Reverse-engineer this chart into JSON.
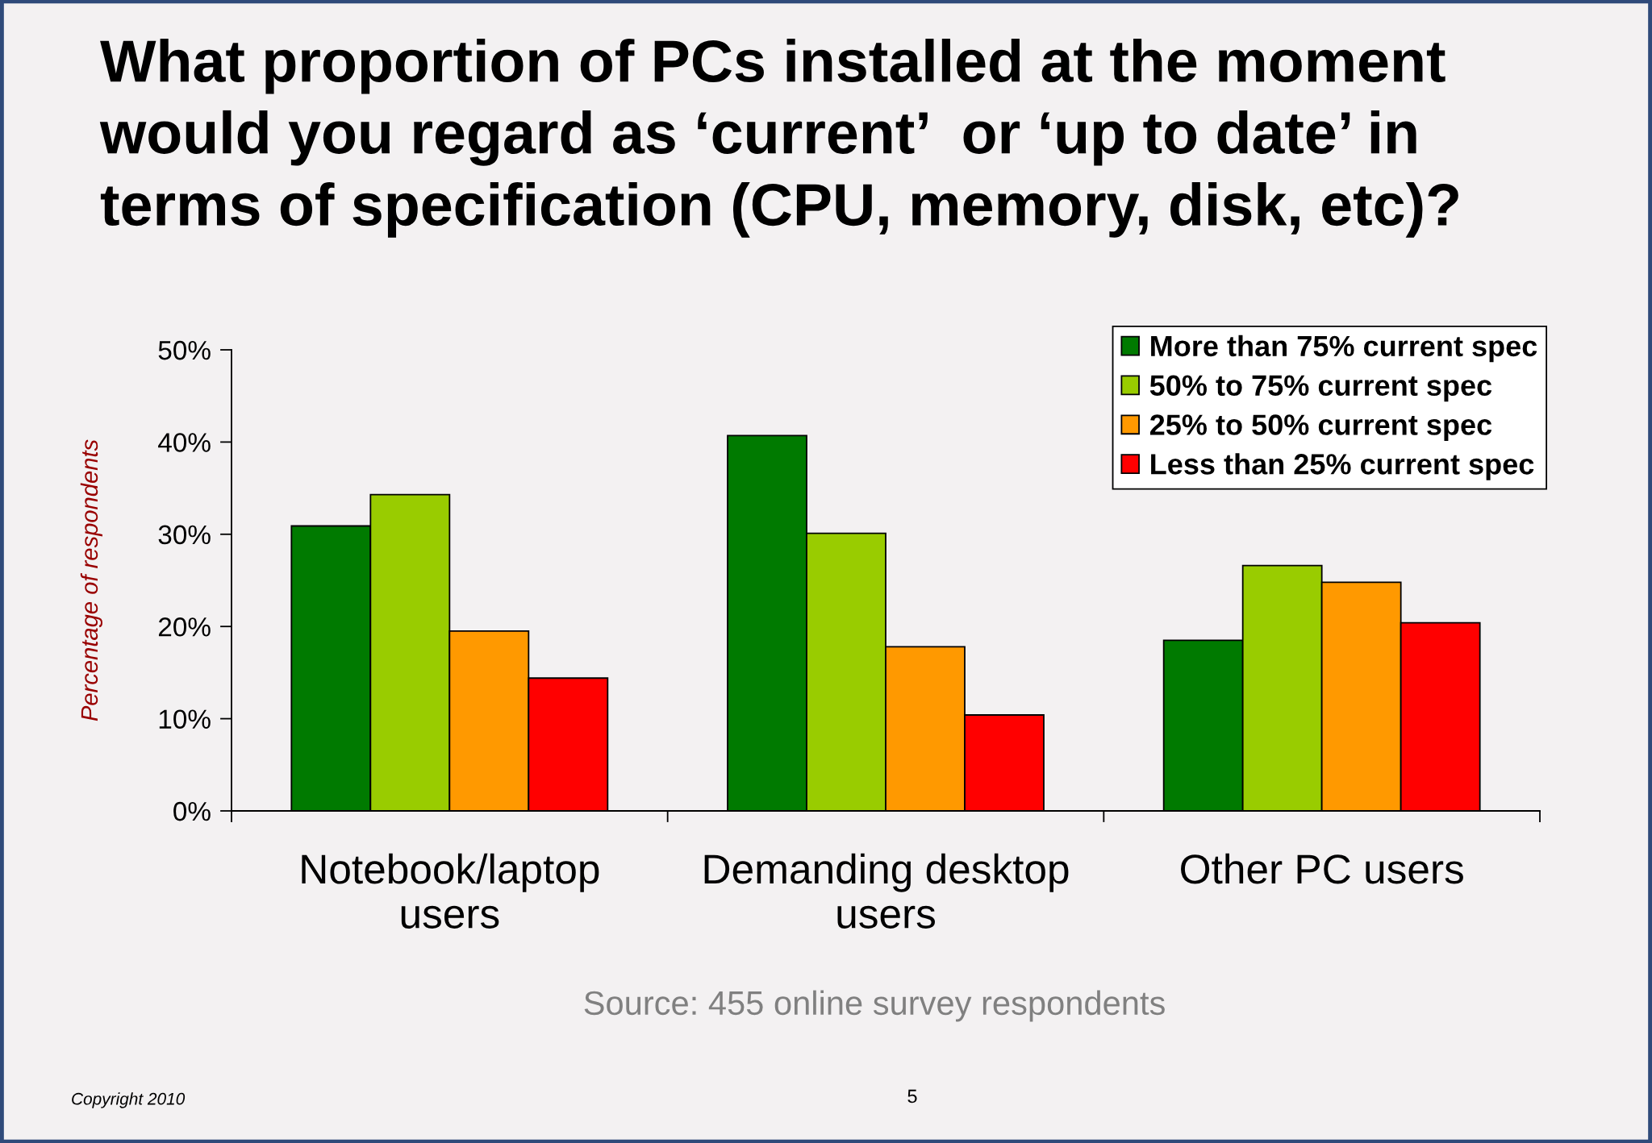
{
  "chart_data": {
    "type": "bar",
    "title": "What proportion of PCs installed at the moment\nwould you regard as ‘current’  or ‘up to date’ in\nterms of specification (CPU, memory, disk, etc)?",
    "ylabel": "Percentage of respondents",
    "categories": [
      "Notebook/laptop\nusers",
      "Demanding desktop\nusers",
      "Other PC users"
    ],
    "series": [
      {
        "name": "More than 75% current spec",
        "color": "#007a00",
        "values": [
          30.9,
          40.7,
          18.5
        ]
      },
      {
        "name": "50% to 75% current spec",
        "color": "#99cc00",
        "values": [
          34.3,
          30.1,
          26.6
        ]
      },
      {
        "name": "25% to 50% current spec",
        "color": "#ff9900",
        "values": [
          19.5,
          17.8,
          24.8
        ]
      },
      {
        "name": "Less than 25% current spec",
        "color": "#ff0000",
        "values": [
          14.4,
          10.4,
          20.4
        ]
      }
    ],
    "ylim": [
      0,
      50
    ],
    "yticks": [
      {
        "value": 0,
        "label": "0%"
      },
      {
        "value": 10,
        "label": "10%"
      },
      {
        "value": 20,
        "label": "20%"
      },
      {
        "value": 30,
        "label": "30%"
      },
      {
        "value": 40,
        "label": "40%"
      },
      {
        "value": 50,
        "label": "50%"
      }
    ],
    "legend": "top right",
    "grid": false,
    "annotations": [
      "Source: 455 online survey respondents",
      "Copyright 2010",
      "5"
    ]
  }
}
